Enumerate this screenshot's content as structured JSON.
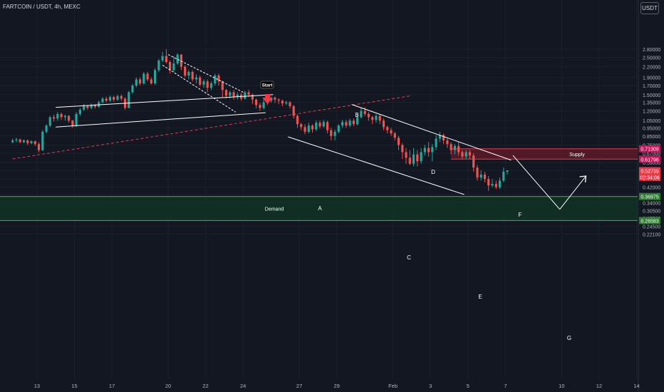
{
  "title": "FARTCOIN / USDT, 4h, MEXC",
  "currency": "USDT",
  "colors": {
    "background": "#131722",
    "up": "#26a69a",
    "down": "#ef5350",
    "supply_fill": "#5a1a26",
    "demand_fill": "#123326",
    "demand_line": "#4caf50",
    "supply_line": "#e53950",
    "trend": "#e53950",
    "annotation": "#ffffff"
  },
  "chart_data": {
    "type": "candlestick",
    "y_scale": "log",
    "y_ticks": [
      "2.80000",
      "2.50000",
      "2.20000",
      "1.90000",
      "1.70000",
      "1.50000",
      "1.35000",
      "1.20000",
      "1.05000",
      "0.95000",
      "0.85000",
      "0.75000",
      "0.67000",
      "0.59000",
      "0.53000",
      "0.47000",
      "0.42000",
      "0.38000",
      "0.34000",
      "0.30500",
      "0.27500",
      "0.24500",
      "0.22100"
    ],
    "x_ticks": [
      "13",
      "15",
      "17",
      "20",
      "22",
      "24",
      "27",
      "29",
      "Feb",
      "3",
      "5",
      "7",
      "10",
      "12",
      "14"
    ],
    "price_labels": [
      {
        "text": "0.71309",
        "kind": "supply"
      },
      {
        "text": "0.61796",
        "kind": "supply"
      },
      {
        "text": "0.52739",
        "kind": "last"
      },
      {
        "text": "02:34:06",
        "kind": "timer"
      },
      {
        "text": "0.36975",
        "kind": "demand"
      },
      {
        "text": "0.26583",
        "kind": "demand"
      }
    ],
    "zones": [
      {
        "name": "Supply",
        "from": 0.61796,
        "to": 0.71309
      },
      {
        "name": "Demand",
        "from": 0.26583,
        "to": 0.36975
      }
    ],
    "wave_labels": [
      "Start",
      "A",
      "B",
      "C",
      "D",
      "E",
      "F",
      "G"
    ],
    "candles": [
      [
        11.7,
        0.78,
        0.8,
        0.82,
        0.77
      ],
      [
        11.9,
        0.8,
        0.81,
        0.83,
        0.78
      ],
      [
        12.1,
        0.81,
        0.78,
        0.82,
        0.77
      ],
      [
        12.3,
        0.78,
        0.8,
        0.81,
        0.77
      ],
      [
        12.5,
        0.8,
        0.77,
        0.81,
        0.75
      ],
      [
        12.7,
        0.77,
        0.79,
        0.8,
        0.76
      ],
      [
        12.9,
        0.79,
        0.76,
        0.8,
        0.74
      ],
      [
        13.1,
        0.76,
        0.7,
        0.78,
        0.68
      ],
      [
        13.3,
        0.7,
        0.9,
        0.92,
        0.69
      ],
      [
        13.5,
        0.9,
        0.98,
        1.0,
        0.88
      ],
      [
        13.7,
        0.98,
        1.1,
        1.12,
        0.96
      ],
      [
        13.9,
        1.1,
        1.08,
        1.14,
        1.04
      ],
      [
        14.1,
        1.08,
        1.15,
        1.18,
        1.05
      ],
      [
        14.3,
        1.15,
        1.1,
        1.17,
        1.06
      ],
      [
        14.5,
        1.1,
        1.12,
        1.14,
        1.05
      ],
      [
        14.7,
        1.12,
        1.05,
        1.13,
        1.02
      ],
      [
        14.9,
        1.05,
        0.98,
        1.06,
        0.95
      ],
      [
        15.1,
        0.98,
        1.15,
        1.18,
        0.96
      ],
      [
        15.3,
        1.15,
        1.22,
        1.25,
        1.12
      ],
      [
        15.5,
        1.22,
        1.28,
        1.32,
        1.2
      ],
      [
        15.7,
        1.28,
        1.25,
        1.3,
        1.22
      ],
      [
        15.9,
        1.25,
        1.3,
        1.33,
        1.23
      ],
      [
        16.1,
        1.3,
        1.27,
        1.32,
        1.24
      ],
      [
        16.3,
        1.27,
        1.35,
        1.38,
        1.25
      ],
      [
        16.5,
        1.35,
        1.42,
        1.45,
        1.33
      ],
      [
        16.7,
        1.42,
        1.38,
        1.46,
        1.35
      ],
      [
        16.9,
        1.38,
        1.45,
        1.48,
        1.36
      ],
      [
        17.1,
        1.45,
        1.4,
        1.48,
        1.36
      ],
      [
        17.3,
        1.4,
        1.47,
        1.5,
        1.38
      ],
      [
        17.5,
        1.47,
        1.42,
        1.5,
        1.38
      ],
      [
        17.7,
        1.42,
        1.25,
        1.45,
        1.22
      ],
      [
        17.9,
        1.25,
        1.55,
        1.58,
        1.24
      ],
      [
        18.1,
        1.55,
        1.7,
        1.74,
        1.52
      ],
      [
        18.3,
        1.7,
        1.85,
        1.9,
        1.66
      ],
      [
        18.5,
        1.85,
        1.75,
        1.9,
        1.7
      ],
      [
        18.7,
        1.75,
        2.0,
        2.05,
        1.72
      ],
      [
        18.9,
        2.0,
        1.85,
        2.05,
        1.8
      ],
      [
        19.1,
        1.85,
        1.75,
        1.9,
        1.72
      ],
      [
        19.3,
        1.75,
        2.1,
        2.15,
        1.72
      ],
      [
        19.5,
        2.1,
        2.4,
        2.45,
        2.05
      ],
      [
        19.7,
        2.4,
        2.55,
        2.7,
        2.35
      ],
      [
        19.9,
        2.55,
        2.35,
        2.8,
        2.3
      ],
      [
        20.1,
        2.35,
        2.1,
        2.4,
        2.0
      ],
      [
        20.3,
        2.1,
        2.3,
        2.55,
        2.05
      ],
      [
        20.5,
        2.3,
        2.6,
        2.65,
        2.25
      ],
      [
        20.7,
        2.6,
        2.2,
        2.62,
        2.1
      ],
      [
        20.9,
        2.2,
        1.95,
        2.25,
        1.9
      ],
      [
        21.1,
        1.95,
        2.05,
        2.1,
        1.85
      ],
      [
        21.3,
        2.05,
        1.85,
        2.1,
        1.8
      ],
      [
        21.5,
        1.85,
        1.9,
        1.98,
        1.75
      ],
      [
        21.7,
        1.9,
        1.72,
        1.95,
        1.68
      ],
      [
        21.9,
        1.72,
        1.8,
        1.85,
        1.65
      ],
      [
        22.1,
        1.8,
        1.65,
        1.85,
        1.55
      ],
      [
        22.3,
        1.65,
        1.75,
        1.8,
        1.6
      ],
      [
        22.5,
        1.75,
        1.95,
        2.0,
        1.7
      ],
      [
        22.7,
        1.95,
        1.8,
        2.0,
        1.7
      ],
      [
        22.9,
        1.8,
        1.6,
        1.82,
        1.45
      ],
      [
        23.1,
        1.6,
        1.48,
        1.62,
        1.42
      ],
      [
        23.3,
        1.48,
        1.55,
        1.58,
        1.42
      ],
      [
        23.5,
        1.55,
        1.45,
        1.6,
        1.4
      ],
      [
        23.7,
        1.45,
        1.5,
        1.55,
        1.4
      ],
      [
        23.9,
        1.5,
        1.42,
        1.54,
        1.38
      ],
      [
        24.1,
        1.42,
        1.55,
        1.58,
        1.4
      ],
      [
        24.3,
        1.55,
        1.5,
        1.6,
        1.45
      ],
      [
        24.5,
        1.5,
        1.4,
        1.52,
        1.32
      ],
      [
        24.7,
        1.4,
        1.3,
        1.42,
        1.24
      ],
      [
        24.9,
        1.3,
        1.25,
        1.34,
        1.2
      ],
      [
        25.1,
        1.25,
        1.35,
        1.4,
        1.22
      ],
      [
        25.3,
        1.35,
        1.38,
        1.42,
        1.3
      ],
      [
        25.5,
        1.38,
        1.44,
        1.46,
        1.34
      ],
      [
        25.7,
        1.44,
        1.4,
        1.46,
        1.34
      ],
      [
        25.9,
        1.4,
        1.38,
        1.43,
        1.32
      ],
      [
        26.1,
        1.38,
        1.33,
        1.4,
        1.28
      ],
      [
        26.3,
        1.33,
        1.35,
        1.38,
        1.3
      ],
      [
        26.5,
        1.35,
        1.28,
        1.37,
        1.24
      ],
      [
        26.7,
        1.28,
        1.12,
        1.3,
        1.08
      ],
      [
        26.9,
        1.12,
        1.0,
        1.14,
        0.95
      ],
      [
        27.1,
        1.0,
        0.96,
        1.02,
        0.92
      ],
      [
        27.3,
        0.96,
        0.9,
        1.0,
        0.87
      ],
      [
        27.5,
        0.9,
        0.98,
        1.02,
        0.88
      ],
      [
        27.7,
        0.98,
        0.93,
        1.0,
        0.89
      ],
      [
        27.9,
        0.93,
        1.02,
        1.05,
        0.91
      ],
      [
        28.1,
        1.02,
        0.97,
        1.05,
        0.94
      ],
      [
        28.3,
        0.97,
        1.03,
        1.06,
        0.95
      ],
      [
        28.5,
        1.03,
        0.92,
        1.05,
        0.88
      ],
      [
        28.7,
        0.92,
        0.85,
        0.95,
        0.8
      ],
      [
        28.9,
        0.85,
        0.9,
        0.93,
        0.8
      ],
      [
        29.1,
        0.9,
        0.98,
        1.0,
        0.88
      ],
      [
        29.3,
        0.98,
        1.03,
        1.06,
        0.95
      ],
      [
        29.5,
        1.03,
        0.98,
        1.06,
        0.95
      ],
      [
        29.7,
        0.98,
        1.05,
        1.08,
        0.96
      ],
      [
        29.9,
        1.05,
        1.0,
        1.08,
        0.97
      ],
      [
        30.1,
        1.0,
        1.1,
        1.15,
        0.98
      ],
      [
        30.3,
        1.1,
        1.2,
        1.25,
        1.08
      ],
      [
        30.5,
        1.2,
        1.15,
        1.26,
        1.12
      ],
      [
        30.7,
        1.15,
        1.1,
        1.18,
        1.05
      ],
      [
        30.9,
        1.1,
        1.06,
        1.12,
        1.0
      ],
      [
        31.1,
        1.06,
        1.12,
        1.15,
        1.02
      ],
      [
        31.3,
        1.12,
        1.05,
        1.14,
        1.0
      ],
      [
        31.5,
        1.05,
        0.96,
        1.08,
        0.92
      ],
      [
        31.7,
        0.96,
        0.92,
        0.98,
        0.88
      ],
      [
        31.9,
        0.92,
        0.88,
        0.95,
        0.85
      ],
      [
        32.1,
        0.88,
        0.83,
        0.9,
        0.8
      ],
      [
        32.3,
        0.83,
        0.75,
        0.85,
        0.7
      ],
      [
        32.5,
        0.75,
        0.68,
        0.77,
        0.62
      ],
      [
        32.7,
        0.68,
        0.63,
        0.72,
        0.58
      ],
      [
        32.9,
        0.63,
        0.58,
        0.7,
        0.57
      ],
      [
        33.1,
        0.58,
        0.66,
        0.72,
        0.56
      ],
      [
        33.3,
        0.66,
        0.6,
        0.7,
        0.56
      ],
      [
        33.5,
        0.6,
        0.68,
        0.72,
        0.58
      ],
      [
        33.7,
        0.68,
        0.72,
        0.75,
        0.65
      ],
      [
        33.9,
        0.72,
        0.68,
        0.78,
        0.64
      ],
      [
        34.1,
        0.68,
        0.73,
        0.76,
        0.6
      ],
      [
        34.3,
        0.73,
        0.82,
        0.86,
        0.7
      ],
      [
        34.5,
        0.82,
        0.86,
        0.9,
        0.78
      ],
      [
        34.7,
        0.86,
        0.8,
        0.88,
        0.76
      ],
      [
        34.9,
        0.8,
        0.76,
        0.83,
        0.72
      ],
      [
        35.1,
        0.76,
        0.7,
        0.78,
        0.66
      ],
      [
        35.3,
        0.7,
        0.74,
        0.76,
        0.66
      ],
      [
        35.5,
        0.74,
        0.68,
        0.78,
        0.65
      ],
      [
        35.7,
        0.68,
        0.64,
        0.7,
        0.62
      ],
      [
        35.9,
        0.64,
        0.68,
        0.7,
        0.62
      ],
      [
        36.1,
        0.68,
        0.65,
        0.7,
        0.62
      ],
      [
        36.3,
        0.65,
        0.55,
        0.67,
        0.52
      ],
      [
        36.5,
        0.55,
        0.48,
        0.57,
        0.46
      ],
      [
        36.7,
        0.48,
        0.5,
        0.53,
        0.46
      ],
      [
        36.9,
        0.5,
        0.47,
        0.52,
        0.45
      ],
      [
        37.1,
        0.47,
        0.43,
        0.49,
        0.4
      ],
      [
        37.3,
        0.43,
        0.44,
        0.47,
        0.42
      ],
      [
        37.5,
        0.44,
        0.42,
        0.46,
        0.41
      ],
      [
        37.7,
        0.42,
        0.46,
        0.48,
        0.41
      ],
      [
        37.9,
        0.46,
        0.52,
        0.55,
        0.45
      ],
      [
        38.1,
        0.52,
        0.53,
        0.53,
        0.5
      ]
    ],
    "drawings": [
      {
        "p": [
          [
            14.0,
            1.26
          ],
          [
            25.6,
            1.5
          ]
        ]
      },
      {
        "p": [
          [
            14.0,
            0.96
          ],
          [
            25.2,
            1.17
          ]
        ]
      },
      {
        "p": [
          [
            20.0,
            2.6
          ],
          [
            24.0,
            1.55
          ]
        ]
      },
      {
        "p": [
          [
            19.7,
            2.25
          ],
          [
            23.6,
            1.18
          ]
        ]
      },
      {
        "p": [
          [
            26.4,
            0.84
          ],
          [
            35.8,
            0.38
          ]
        ]
      },
      {
        "p": [
          [
            29.8,
            1.31
          ],
          [
            38.3,
            0.61
          ]
        ]
      },
      {
        "p": [
          [
            38.4,
            0.65
          ],
          [
            40.9,
            0.31
          ]
        ]
      },
      {
        "p": [
          [
            40.9,
            0.31
          ],
          [
            42.3,
            0.49
          ]
        ]
      }
    ],
    "trend_dashed": [
      [
        11.7,
        0.62
      ],
      [
        33.0,
        1.48
      ]
    ]
  }
}
